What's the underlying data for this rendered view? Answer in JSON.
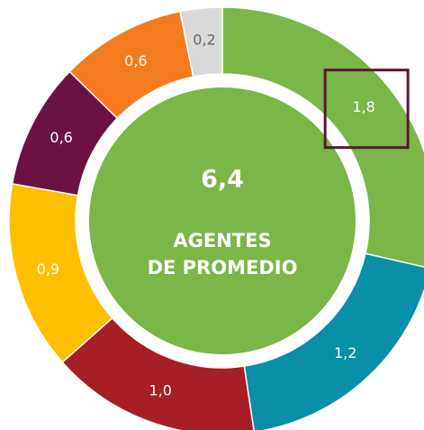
{
  "chart_data": {
    "type": "pie",
    "categories": [
      "Green",
      "Teal",
      "Red",
      "Yellow",
      "Purple",
      "Orange",
      "Gray"
    ],
    "values": [
      1.8,
      1.2,
      1.0,
      0.9,
      0.6,
      0.6,
      0.2
    ],
    "value_labels": [
      "1,8",
      "1,2",
      "1,0",
      "0,9",
      "0,6",
      "0,6",
      "0,2"
    ],
    "colors": [
      "#7ab648",
      "#0a8fa8",
      "#a51f24",
      "#fdbf00",
      "#6b1243",
      "#f47b20",
      "#d9d9d9"
    ],
    "donut": true,
    "total": {
      "value": 6.4,
      "label": "6,4"
    },
    "center_text": [
      "AGENTES",
      "DE PROMEDIO"
    ]
  }
}
